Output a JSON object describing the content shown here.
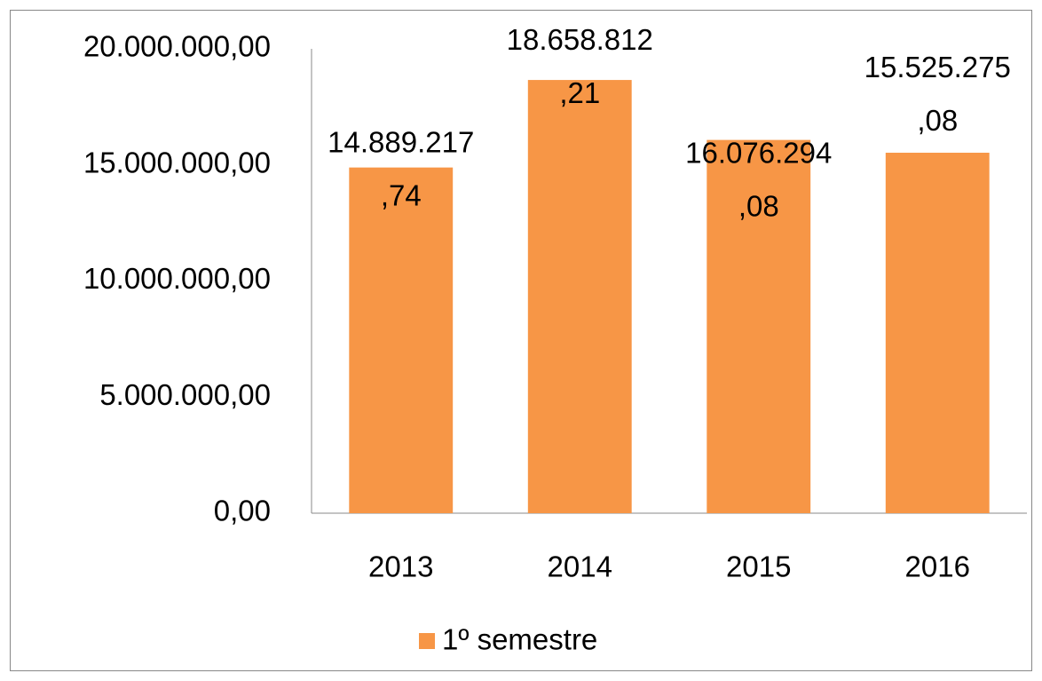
{
  "chart_data": {
    "type": "bar",
    "categories": [
      "2013",
      "2014",
      "2015",
      "2016"
    ],
    "series": [
      {
        "name": "1º semestre",
        "color": "#f79646",
        "values": [
          14889217.74,
          18658812.21,
          16076294.08,
          15525275.08
        ],
        "value_labels": [
          "14.889.217,74",
          "18.658.812,21",
          "16.076.294,08",
          "15.525.275,08"
        ]
      }
    ],
    "ylim": [
      0,
      20000000
    ],
    "yticks": [
      {
        "value": 0,
        "label": "0,00"
      },
      {
        "value": 5000000,
        "label": "5.000.000,00"
      },
      {
        "value": 10000000,
        "label": "10.000.000,00"
      },
      {
        "value": 15000000,
        "label": "15.000.000,00"
      },
      {
        "value": 20000000,
        "label": "20.000.000,00"
      }
    ],
    "grid": false,
    "legend": "bottom"
  }
}
